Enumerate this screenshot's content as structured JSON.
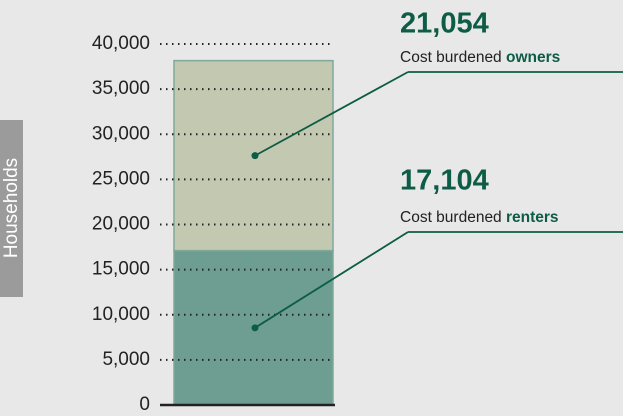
{
  "chart_data": {
    "type": "stacked-bar",
    "y_label": "Households",
    "categories": [
      null
    ],
    "series": [
      {
        "name": "renters",
        "label": "Cost burdened",
        "color": "#6e9e92",
        "values": [
          17104
        ],
        "value_labels": [
          "17,104"
        ]
      },
      {
        "name": "owners",
        "label": "Cost burdened",
        "color": "#c3c8b0",
        "values": [
          21054
        ],
        "value_labels": [
          "21,054"
        ]
      }
    ],
    "ylim": [
      0,
      40000
    ],
    "yticks": [
      {
        "value": 0,
        "label": "0"
      },
      {
        "value": 5000,
        "label": "5,000"
      },
      {
        "value": 10000,
        "label": "10,000"
      },
      {
        "value": 15000,
        "label": "15,000"
      },
      {
        "value": 20000,
        "label": "20,000"
      },
      {
        "value": 25000,
        "label": "25,000"
      },
      {
        "value": 30000,
        "label": "30,000"
      },
      {
        "value": 35000,
        "label": "35,000"
      },
      {
        "value": 40000,
        "label": "40,000"
      }
    ],
    "grid": true,
    "annotation_color": "#0d5c46"
  }
}
